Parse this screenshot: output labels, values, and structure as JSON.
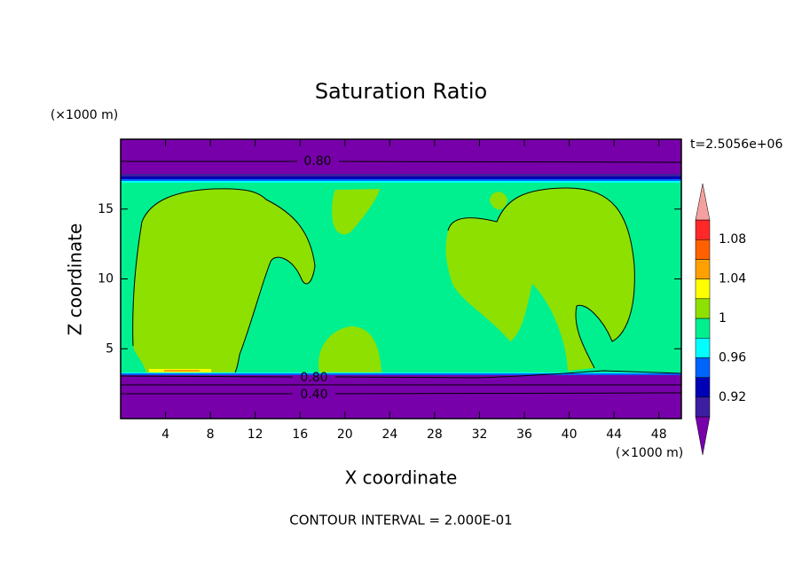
{
  "chart_data": {
    "type": "contour",
    "title": "Saturation Ratio",
    "xlabel": "X coordinate",
    "ylabel": "Z coordinate",
    "x_unit_label": "(×1000 m)",
    "y_unit_label": "(×1000 m)",
    "time_label": "t=2.5056e+06",
    "footer": "CONTOUR INTERVAL = 2.000E-01",
    "xlim": [
      0,
      50
    ],
    "xticks": [
      4,
      8,
      12,
      16,
      20,
      24,
      28,
      32,
      36,
      40,
      44,
      48
    ],
    "ylim": [
      0,
      20
    ],
    "yticks": [
      5,
      10,
      15
    ],
    "contour_labels": [
      "0.80",
      "0.80",
      "0.40"
    ],
    "colorbar": {
      "levels": [
        0.9,
        0.92,
        0.94,
        0.96,
        0.98,
        1,
        1.02,
        1.04,
        1.06,
        1.08,
        1.1
      ],
      "colors": [
        "#3c1ea0",
        "#0000b4",
        "#0064ff",
        "#00ffff",
        "#00f090",
        "#8ee000",
        "#ffff00",
        "#ffa000",
        "#ff6000",
        "#ff2828"
      ],
      "under_color": "#7800aa",
      "over_color": "#f5a0a0",
      "ticks": [
        0.92,
        0.96,
        1,
        1.04,
        1.08
      ]
    }
  }
}
